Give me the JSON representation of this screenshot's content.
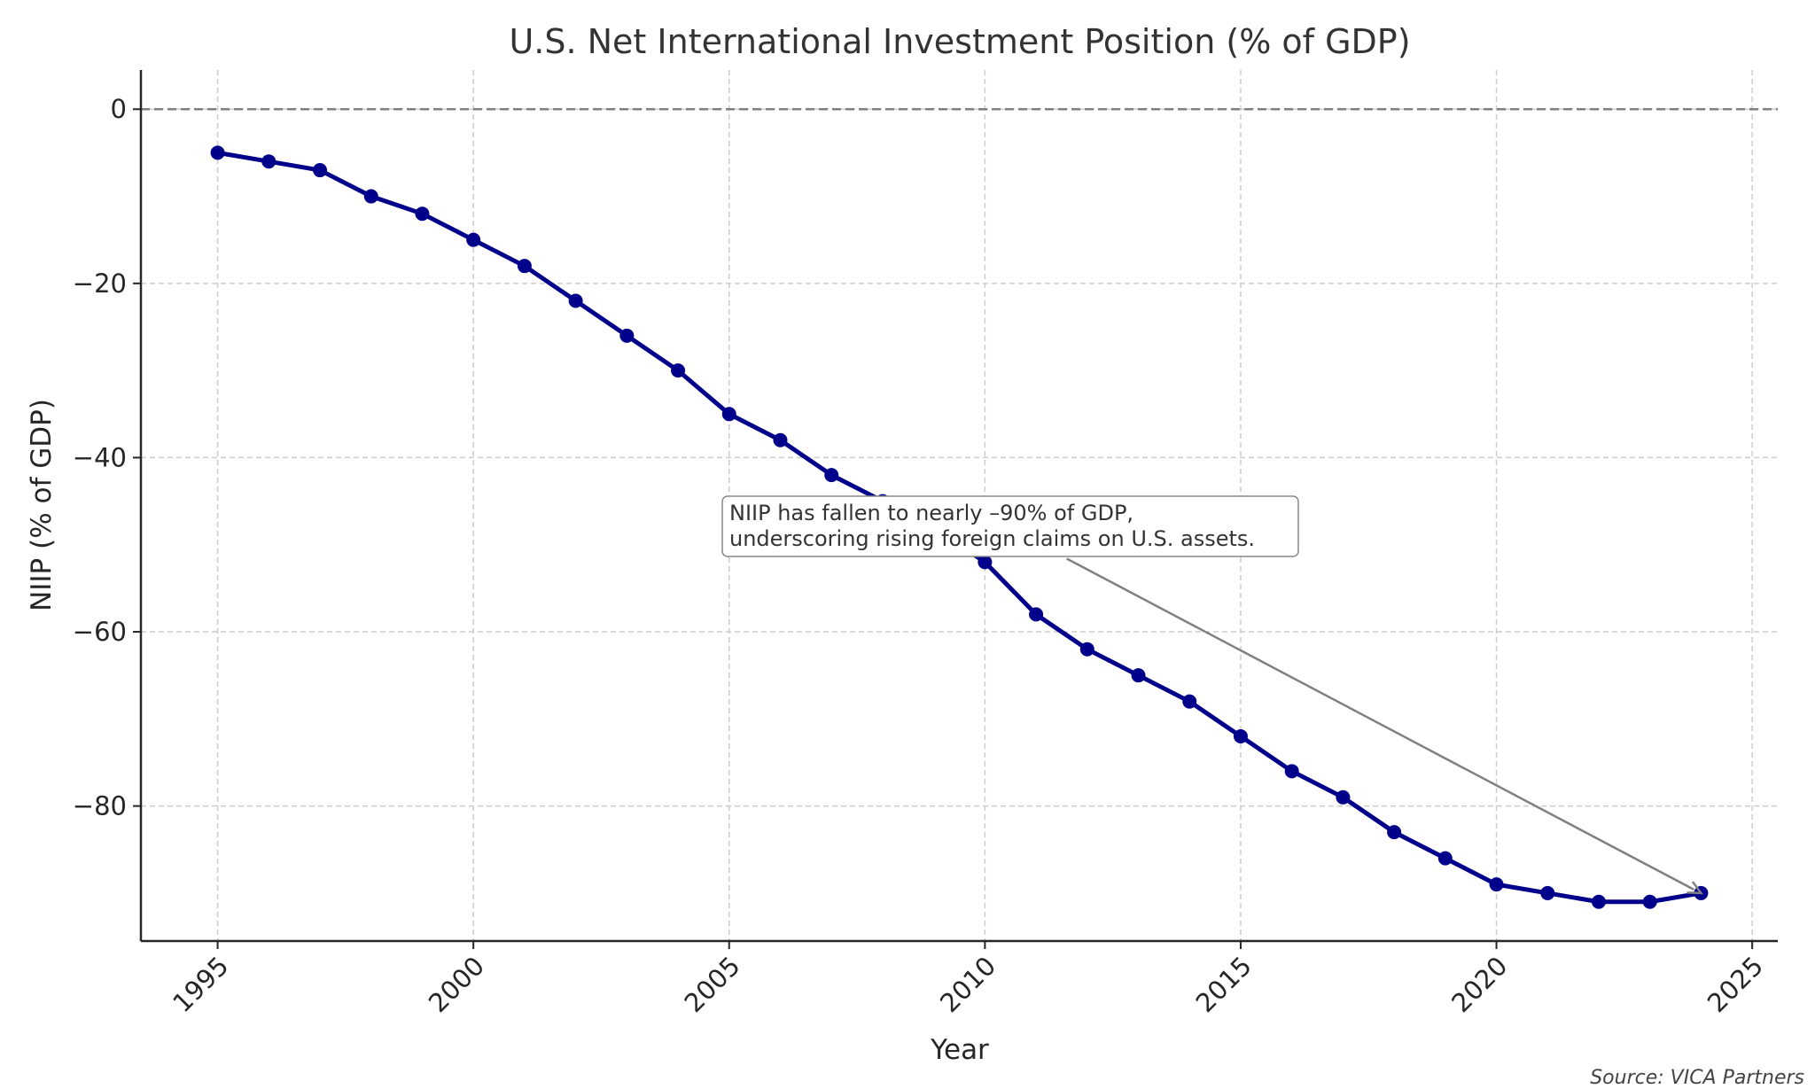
{
  "chart_data": {
    "type": "line",
    "title": "U.S. Net International Investment Position (% of GDP)",
    "xlabel": "Year",
    "ylabel": "NIIP (% of GDP)",
    "xlim": [
      1993.5,
      2025.5
    ],
    "ylim": [
      -95.5,
      4.5
    ],
    "xticks": [
      1995,
      2000,
      2005,
      2010,
      2015,
      2020,
      2025
    ],
    "yticks": [
      0,
      -20,
      -40,
      -60,
      -80
    ],
    "ytick_labels": [
      "0",
      "−20",
      "−40",
      "−60",
      "−80"
    ],
    "grid": true,
    "reference_line": {
      "y": 0,
      "style": "dashed",
      "color": "#808080"
    },
    "series": [
      {
        "color": "#00008b",
        "marker": "circle",
        "x": [
          1995,
          1996,
          1997,
          1998,
          1999,
          2000,
          2001,
          2002,
          2003,
          2004,
          2005,
          2006,
          2007,
          2008,
          2009,
          2010,
          2011,
          2012,
          2013,
          2014,
          2015,
          2016,
          2017,
          2018,
          2019,
          2020,
          2021,
          2022,
          2023,
          2024
        ],
        "y": [
          -5,
          -6,
          -7,
          -10,
          -12,
          -15,
          -18,
          -22,
          -26,
          -30,
          -35,
          -38,
          -42,
          -45,
          -48,
          -52,
          -58,
          -62,
          -65,
          -68,
          -72,
          -76,
          -79,
          -83,
          -86,
          -89,
          -90,
          -91,
          -91,
          -90
        ]
      }
    ],
    "annotation": {
      "lines": [
        "NIIP has fallen to nearly –90% of GDP,",
        "underscoring rising foreign claims on U.S. assets."
      ],
      "text_at": [
        2011.6,
        -51.6
      ],
      "arrow_to": [
        2024,
        -90
      ],
      "arrow_color": "#808080"
    },
    "source": "Source: VICA Partners"
  }
}
